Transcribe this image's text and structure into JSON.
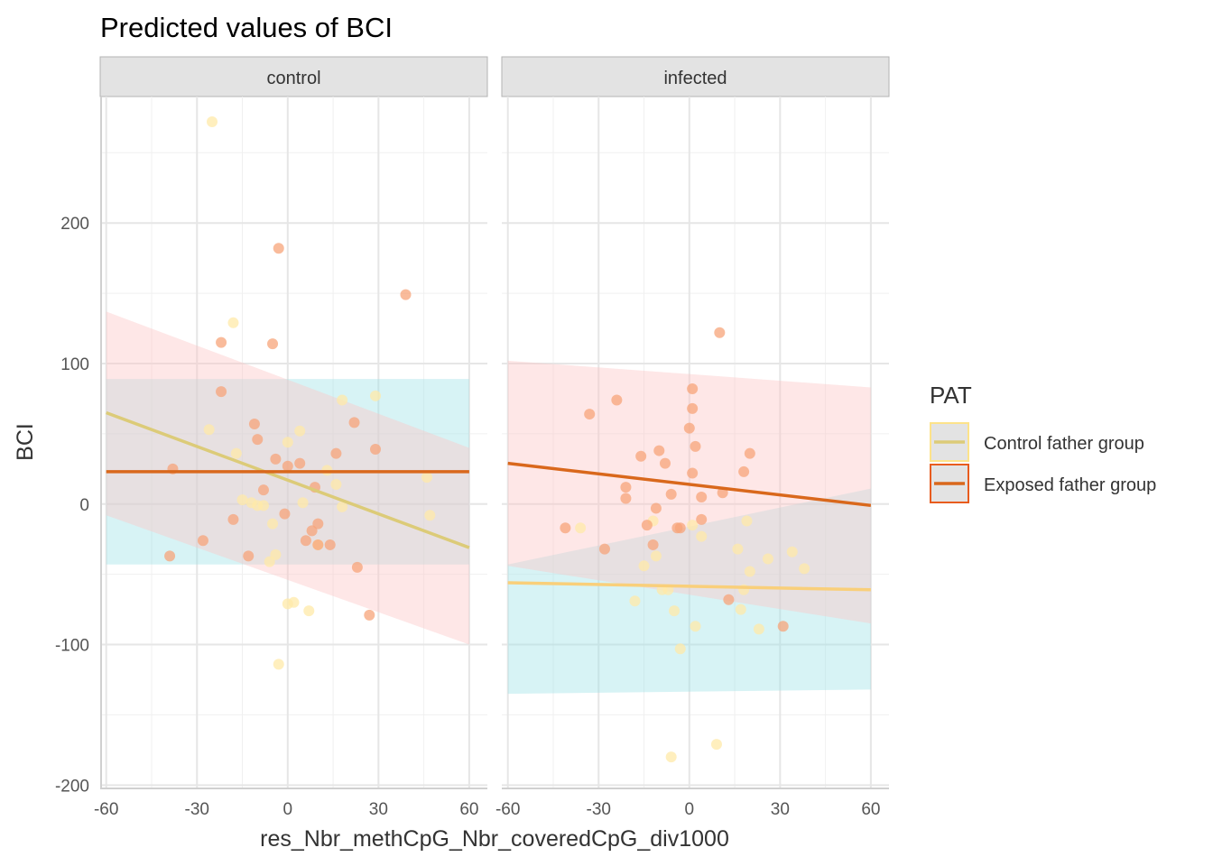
{
  "chart_data": {
    "type": "scatter",
    "title": "Predicted values of BCI",
    "xlabel": "res_Nbr_methCpG_Nbr_coveredCpG_div1000",
    "ylabel": "BCI",
    "xlim": [
      -62,
      66
    ],
    "ylim": [
      -203,
      290
    ],
    "x_ticks": [
      -60,
      -30,
      0,
      30,
      60
    ],
    "x_tick_labels": [
      "-60",
      "-30",
      "0",
      "30",
      "60"
    ],
    "y_ticks": [
      -200,
      -100,
      0,
      100,
      200
    ],
    "y_tick_labels": [
      "-200",
      "-100",
      "0",
      "100",
      "200"
    ],
    "grid": true,
    "legend": {
      "title": "PAT",
      "position": "right",
      "entries": [
        {
          "label": "Control father group",
          "line_color": "#dccb78",
          "fill_color": "#e3e3e3",
          "border_color": "#fde38a"
        },
        {
          "label": "Exposed father group",
          "line_color": "#d9681c",
          "fill_color": "#e3e3e3",
          "border_color": "#e85c1e"
        }
      ]
    },
    "colors": {
      "control_points": "#ffe9a8",
      "exposed_points": "#f7a47a",
      "control_line": "#dccb78",
      "exposed_line": "#d9681c",
      "infected_control_line": "#f9cf7a",
      "ci_control": "#9fe3e6",
      "ci_exposed": "#fcc6c6",
      "strip_fill": "#e3e3e3",
      "strip_border": "#b3b3b3"
    },
    "panels": [
      {
        "label": "control",
        "series": [
          {
            "name": "Control father group",
            "fit": {
              "x": [
                -60,
                60
              ],
              "y": [
                65,
                -31
              ]
            },
            "ci": {
              "x": [
                -60,
                60
              ],
              "lower": [
                -43,
                -43
              ],
              "upper": [
                89,
                89
              ]
            },
            "points": [
              [
                -25,
                272
              ],
              [
                -18,
                129
              ],
              [
                -5,
                -14
              ],
              [
                -6,
                -41
              ],
              [
                -4,
                -36
              ],
              [
                -8,
                -1
              ],
              [
                -10,
                -1
              ],
              [
                -12,
                1
              ],
              [
                -15,
                3
              ],
              [
                -17,
                36
              ],
              [
                -26,
                53
              ],
              [
                0,
                -71
              ],
              [
                2,
                -70
              ],
              [
                7,
                -76
              ],
              [
                -3,
                -114
              ],
              [
                0,
                44
              ],
              [
                4,
                52
              ],
              [
                5,
                1
              ],
              [
                10,
                -29
              ],
              [
                13,
                24
              ],
              [
                16,
                14
              ],
              [
                18,
                -2
              ],
              [
                18,
                74
              ],
              [
                29,
                77
              ],
              [
                46,
                19
              ],
              [
                47,
                -8
              ]
            ]
          },
          {
            "name": "Exposed father group",
            "fit": {
              "x": [
                -60,
                60
              ],
              "y": [
                23,
                23
              ]
            },
            "ci": {
              "x": [
                -60,
                60
              ],
              "lower": [
                -8,
                -100
              ],
              "upper": [
                137,
                40
              ]
            },
            "points": [
              [
                -39,
                -37
              ],
              [
                -38,
                25
              ],
              [
                -28,
                -26
              ],
              [
                -22,
                115
              ],
              [
                -22,
                80
              ],
              [
                -18,
                -11
              ],
              [
                -13,
                -37
              ],
              [
                -11,
                57
              ],
              [
                -10,
                46
              ],
              [
                -8,
                10
              ],
              [
                -4,
                32
              ],
              [
                -3,
                182
              ],
              [
                -5,
                114
              ],
              [
                -1,
                -7
              ],
              [
                0,
                27
              ],
              [
                4,
                29
              ],
              [
                6,
                -26
              ],
              [
                8,
                -19
              ],
              [
                9,
                12
              ],
              [
                10,
                -14
              ],
              [
                10,
                -29
              ],
              [
                14,
                -29
              ],
              [
                16,
                36
              ],
              [
                22,
                58
              ],
              [
                23,
                -45
              ],
              [
                27,
                -79
              ],
              [
                29,
                39
              ],
              [
                39,
                149
              ]
            ]
          }
        ]
      },
      {
        "label": "infected",
        "series": [
          {
            "name": "Control father group",
            "fit": {
              "x": [
                -60,
                60
              ],
              "y": [
                -56,
                -61
              ]
            },
            "ci": {
              "x": [
                -60,
                60
              ],
              "lower": [
                -135,
                -132
              ],
              "upper": [
                -43,
                11
              ]
            },
            "points": [
              [
                -36,
                -17
              ],
              [
                -18,
                -69
              ],
              [
                -15,
                -44
              ],
              [
                -12,
                -12
              ],
              [
                -11,
                -37
              ],
              [
                -9,
                -61
              ],
              [
                -7,
                -61
              ],
              [
                -5,
                -76
              ],
              [
                -3,
                -103
              ],
              [
                1,
                -15
              ],
              [
                2,
                -87
              ],
              [
                4,
                -23
              ],
              [
                9,
                -171
              ],
              [
                16,
                -32
              ],
              [
                17,
                -75
              ],
              [
                18,
                -61
              ],
              [
                19,
                -12
              ],
              [
                20,
                -48
              ],
              [
                23,
                -89
              ],
              [
                26,
                -39
              ],
              [
                34,
                -34
              ],
              [
                38,
                -46
              ],
              [
                -6,
                -180
              ]
            ]
          },
          {
            "name": "Exposed father group",
            "fit": {
              "x": [
                -60,
                60
              ],
              "y": [
                29,
                -1
              ]
            },
            "ci": {
              "x": [
                -60,
                60
              ],
              "lower": [
                -44,
                -85
              ],
              "upper": [
                102,
                83
              ]
            },
            "points": [
              [
                -41,
                -17
              ],
              [
                -33,
                64
              ],
              [
                -28,
                -32
              ],
              [
                -24,
                74
              ],
              [
                -21,
                12
              ],
              [
                -21,
                4
              ],
              [
                -16,
                34
              ],
              [
                -14,
                -15
              ],
              [
                -12,
                -29
              ],
              [
                -11,
                -3
              ],
              [
                -10,
                38
              ],
              [
                -8,
                29
              ],
              [
                -6,
                7
              ],
              [
                -4,
                -17
              ],
              [
                -3,
                -17
              ],
              [
                0,
                54
              ],
              [
                1,
                68
              ],
              [
                1,
                82
              ],
              [
                2,
                41
              ],
              [
                1,
                22
              ],
              [
                4,
                5
              ],
              [
                4,
                -11
              ],
              [
                10,
                122
              ],
              [
                11,
                8
              ],
              [
                13,
                -68
              ],
              [
                18,
                23
              ],
              [
                20,
                36
              ],
              [
                31,
                -87
              ]
            ]
          }
        ]
      }
    ]
  }
}
